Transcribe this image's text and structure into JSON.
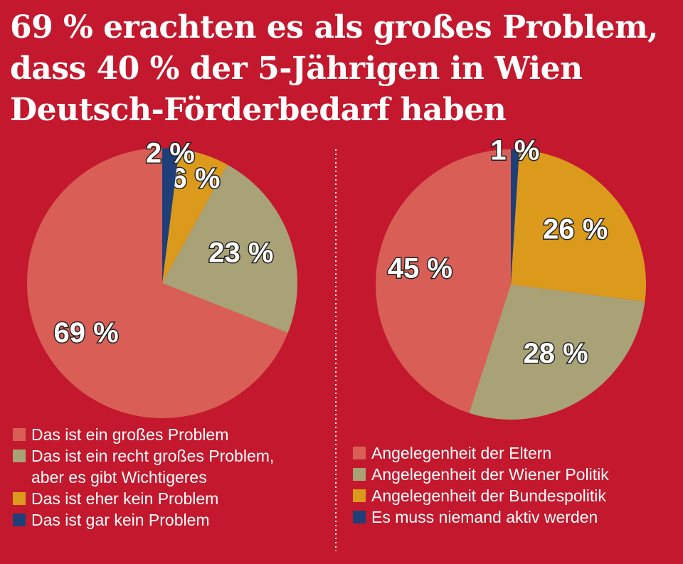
{
  "title": "69 % erachten es als großes Problem, dass 40 % der 5-Jährigen in Wien Deutsch-Förderbedarf haben",
  "colors": {
    "background": "#c3182d",
    "salmon": "#d95f56",
    "olive": "#a9a276",
    "gold": "#dc9a1c",
    "navy": "#1f3f78"
  },
  "chart_data": [
    {
      "type": "pie",
      "title": "",
      "labels": [
        "Das ist ein großes Problem",
        "Das ist ein recht großes Problem,\naber es gibt Wichtigeres",
        "Das ist eher kein Problem",
        "Das ist gar kein Problem"
      ],
      "values": [
        69,
        23,
        6,
        2
      ],
      "value_labels": [
        "69 %",
        "23 %",
        "6 %",
        "2 %"
      ],
      "colors": [
        "#d95f56",
        "#a9a276",
        "#dc9a1c",
        "#1f3f78"
      ],
      "legend": "bottom"
    },
    {
      "type": "pie",
      "title": "",
      "labels": [
        "Angelegenheit der Eltern",
        "Angelegenheit der Wiener Politik",
        "Angelegenheit der Bundespolitik",
        "Es muss niemand aktiv werden"
      ],
      "values": [
        45,
        28,
        26,
        1
      ],
      "value_labels": [
        "45 %",
        "28 %",
        "26 %",
        "1 %"
      ],
      "colors": [
        "#d95f56",
        "#a9a276",
        "#dc9a1c",
        "#1f3f78"
      ],
      "legend": "bottom"
    }
  ]
}
